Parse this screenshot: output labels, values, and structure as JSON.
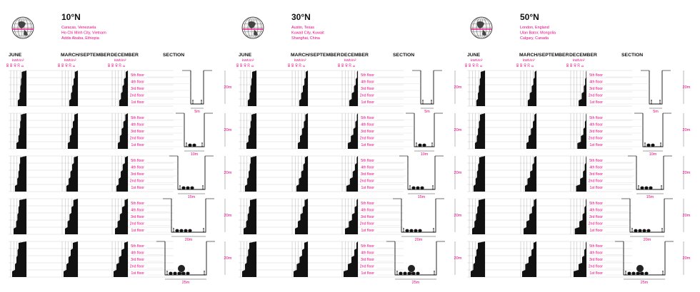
{
  "accent": "#e6007e",
  "labels": {
    "june": "JUNE",
    "equinox": "MARCH/SEPTEMBER",
    "december": "DECEMBER",
    "section": "SECTION",
    "unit": "kWh/m²",
    "ticks": [
      "80",
      "60",
      "40",
      "20",
      "0"
    ],
    "floors": [
      "5th floor",
      "4th floor",
      "3rd floor",
      "2nd floor",
      "1st floor"
    ],
    "height": "20m",
    "widths": [
      "5m",
      "10m",
      "15m",
      "20m",
      "25m"
    ]
  },
  "panels": [
    {
      "latitude": "10°N",
      "cities": [
        "Caracas, Venezuela",
        "Ho Chi Minh City, Vietnam",
        "Addis Ababa, Ethiopia"
      ]
    },
    {
      "latitude": "30°N",
      "cities": [
        "Austin, Texas",
        "Kuwait City, Kuwait",
        "Shanghai, China"
      ]
    },
    {
      "latitude": "50°N",
      "cities": [
        "London, England",
        "Ulan Bator, Mongolia",
        "Calgary, Canada"
      ]
    }
  ],
  "icons": {
    "globe": "globe-icon",
    "tree": "tree-icon",
    "person": "person-icon"
  }
}
